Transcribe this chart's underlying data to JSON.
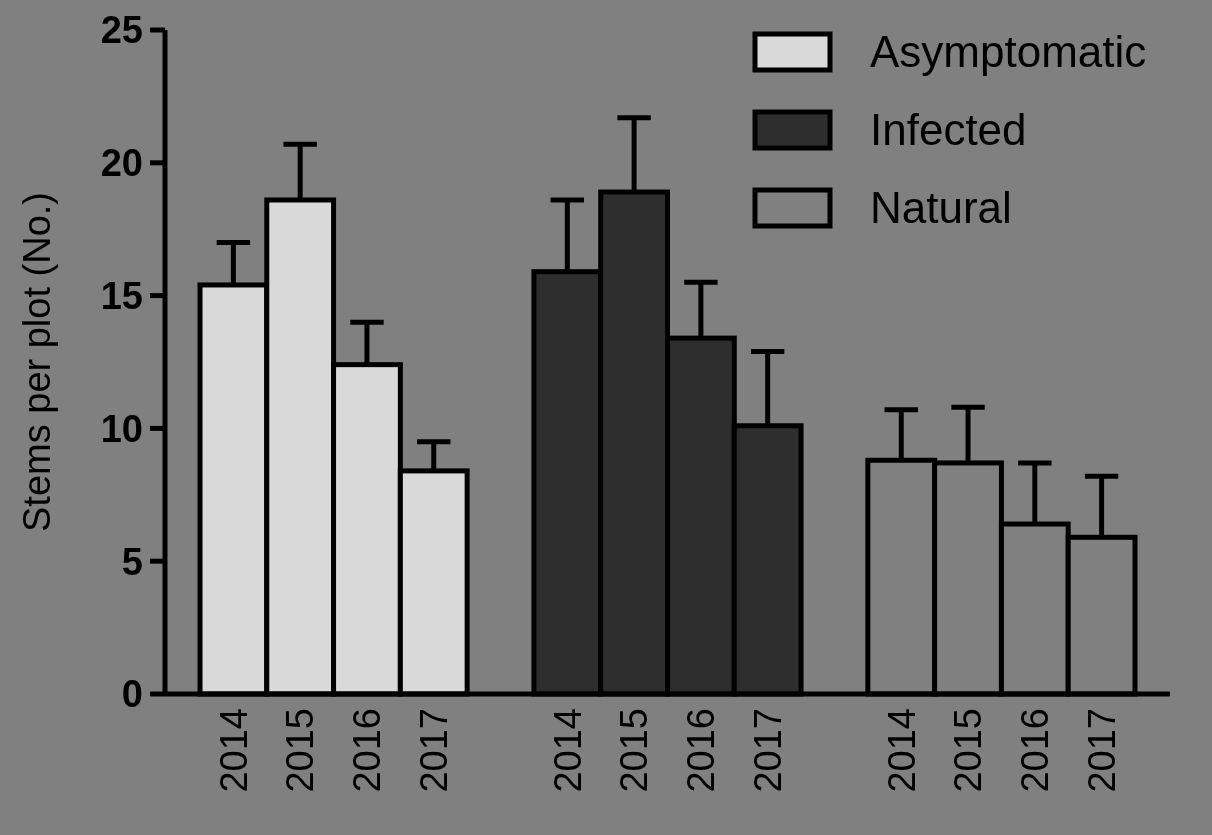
{
  "chart_data": {
    "type": "bar",
    "ylabel": "Stems per plot (No.)",
    "categories": [
      "2014",
      "2015",
      "2016",
      "2017",
      null,
      "2014",
      "2015",
      "2016",
      "2017",
      null,
      "2014",
      "2015",
      "2016",
      "2017"
    ],
    "series": [
      {
        "name": "Asymptomatic",
        "color": "#d9d9d9",
        "values": [
          15.4,
          18.6,
          12.4,
          8.4,
          null,
          null,
          null,
          null,
          null,
          null,
          null,
          null,
          null,
          null
        ],
        "errors": [
          [
            15.4,
            17.0
          ],
          [
            18.6,
            20.7
          ],
          [
            12.4,
            14.0
          ],
          [
            8.4,
            9.5
          ],
          null,
          null,
          null,
          null,
          null,
          null,
          null,
          null,
          null,
          null
        ]
      },
      {
        "name": "Infected",
        "color": "#2e2e2e",
        "values": [
          null,
          null,
          null,
          null,
          null,
          15.9,
          18.9,
          13.4,
          10.1,
          null,
          null,
          null,
          null,
          null
        ],
        "errors": [
          null,
          null,
          null,
          null,
          null,
          [
            15.9,
            18.6
          ],
          [
            18.9,
            21.7
          ],
          [
            13.4,
            15.5
          ],
          [
            10.1,
            12.9
          ],
          null,
          null,
          null,
          null,
          null
        ]
      },
      {
        "name": "Natural",
        "color": "#808080",
        "values": [
          null,
          null,
          null,
          null,
          null,
          null,
          null,
          null,
          null,
          null,
          8.8,
          8.7,
          6.4,
          5.9
        ],
        "errors": [
          null,
          null,
          null,
          null,
          null,
          null,
          null,
          null,
          null,
          null,
          [
            8.8,
            10.7
          ],
          [
            8.7,
            10.8
          ],
          [
            6.4,
            8.7
          ],
          [
            5.9,
            8.2
          ]
        ]
      }
    ],
    "ylim": [
      0,
      25
    ],
    "yticks": [
      0,
      5,
      10,
      15,
      20,
      25
    ],
    "legend": "top right"
  }
}
